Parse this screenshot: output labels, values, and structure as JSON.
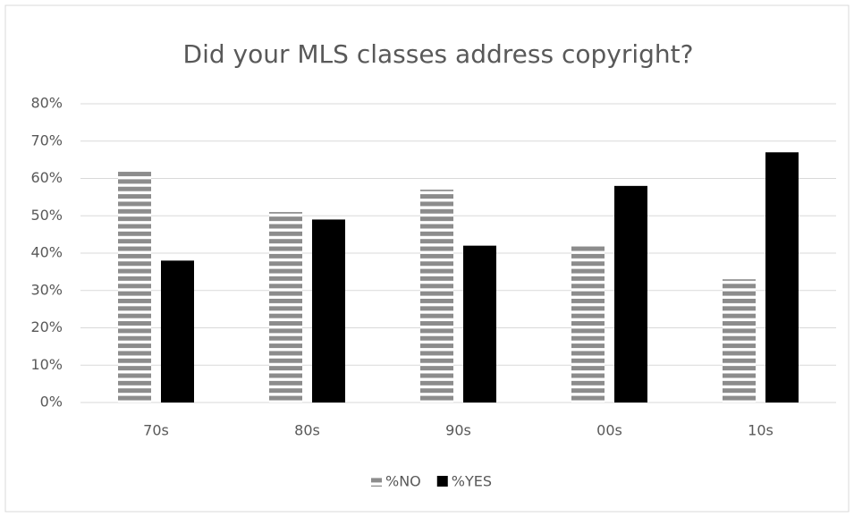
{
  "chart_data": {
    "type": "bar",
    "title": "Did your MLS classes address copyright?",
    "categories": [
      "70s",
      "80s",
      "90s",
      "00s",
      "10s"
    ],
    "series": [
      {
        "name": "%NO",
        "color": "#8c8c8c",
        "hatch": "horizontal",
        "values": [
          62,
          51,
          57,
          42,
          33
        ]
      },
      {
        "name": "%YES",
        "color": "#000000",
        "values": [
          38,
          49,
          42,
          58,
          67
        ]
      }
    ],
    "ylim": [
      0,
      80
    ],
    "yticks": [
      {
        "value": 0,
        "label": "0%"
      },
      {
        "value": 10,
        "label": "10%"
      },
      {
        "value": 20,
        "label": "20%"
      },
      {
        "value": 30,
        "label": "30%"
      },
      {
        "value": 40,
        "label": "40%"
      },
      {
        "value": 50,
        "label": "50%"
      },
      {
        "value": 60,
        "label": "60%"
      },
      {
        "value": 70,
        "label": "70%"
      },
      {
        "value": 80,
        "label": "80%"
      }
    ],
    "grid": true,
    "legend": "bottom"
  }
}
